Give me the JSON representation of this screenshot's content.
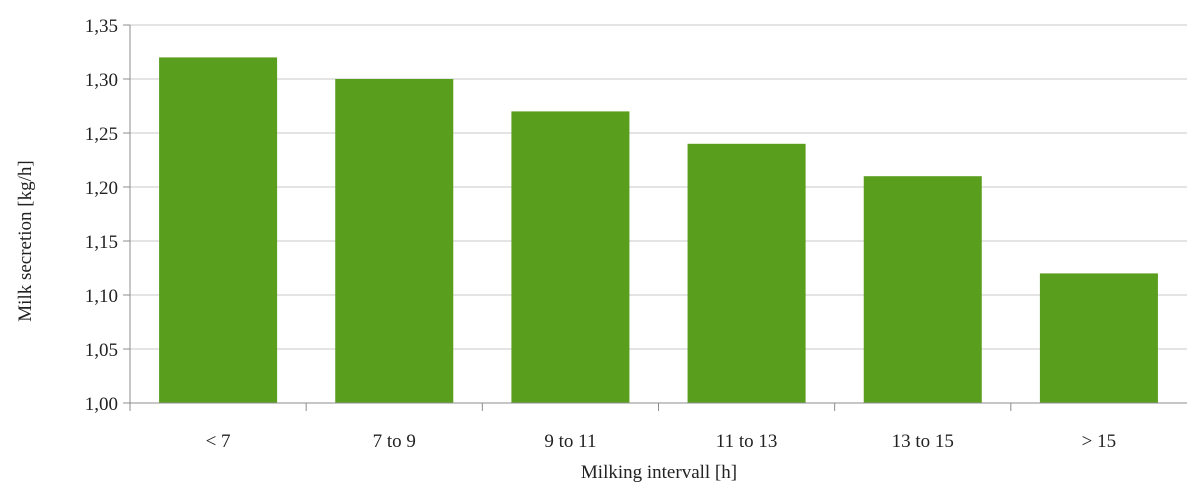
{
  "chart_data": {
    "type": "bar",
    "categories": [
      "< 7",
      "7 to 9",
      "9 to 11",
      "11 to 13",
      "13 to 15",
      "> 15"
    ],
    "values": [
      1.32,
      1.3,
      1.27,
      1.24,
      1.21,
      1.12
    ],
    "xlabel": "Milking intervall [h]",
    "ylabel": "Milk secretion [kg/h]",
    "ylim": [
      1.0,
      1.35
    ],
    "yticks": [
      "1,00",
      "1,05",
      "1,10",
      "1,15",
      "1,20",
      "1,25",
      "1,30",
      "1,35"
    ],
    "grid": true,
    "bar_color": "#5a9e1e"
  }
}
